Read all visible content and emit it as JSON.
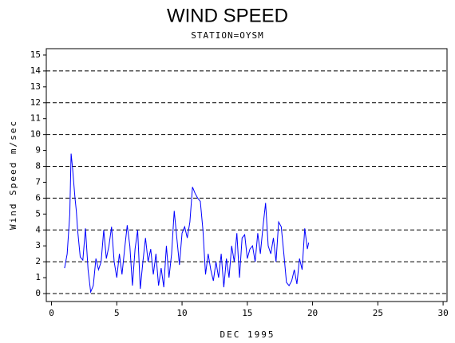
{
  "chart_data": {
    "type": "line",
    "title": "WIND SPEED",
    "subtitle": "STATION=OYSM",
    "x_label": "DEC 1995",
    "y_label": "Wind Speed m/sec",
    "xlim": [
      -0.4,
      30.3
    ],
    "ylim": [
      -0.5,
      15.4
    ],
    "xticks": [
      0,
      5,
      10,
      15,
      20,
      25,
      30
    ],
    "yticks": [
      0,
      1,
      2,
      3,
      4,
      5,
      6,
      7,
      8,
      9,
      10,
      11,
      12,
      13,
      14,
      15
    ],
    "ygrid": [
      0,
      2,
      4,
      6,
      8,
      10,
      12,
      14
    ],
    "grid": true,
    "x": [
      1.0,
      1.2,
      1.4,
      1.5,
      1.6,
      1.8,
      1.9,
      2.0,
      2.2,
      2.4,
      2.6,
      2.8,
      3.0,
      3.2,
      3.4,
      3.6,
      3.8,
      4.0,
      4.2,
      4.4,
      4.6,
      4.8,
      5.0,
      5.2,
      5.4,
      5.6,
      5.8,
      6.0,
      6.2,
      6.4,
      6.6,
      6.8,
      7.0,
      7.2,
      7.4,
      7.6,
      7.8,
      8.0,
      8.2,
      8.4,
      8.6,
      8.8,
      9.0,
      9.2,
      9.4,
      9.6,
      9.8,
      10.0,
      10.2,
      10.4,
      10.6,
      10.8,
      11.0,
      11.2,
      11.4,
      11.6,
      11.8,
      12.0,
      12.2,
      12.4,
      12.6,
      12.8,
      13.0,
      13.2,
      13.4,
      13.6,
      13.8,
      14.0,
      14.2,
      14.4,
      14.6,
      14.8,
      15.0,
      15.2,
      15.4,
      15.6,
      15.8,
      16.0,
      16.2,
      16.4,
      16.6,
      16.8,
      17.0,
      17.2,
      17.4,
      17.6,
      17.8,
      18.0,
      18.2,
      18.4,
      18.6,
      18.8,
      19.0,
      19.2,
      19.4,
      19.6,
      19.7
    ],
    "series": [
      {
        "name": "Wind Speed",
        "color": "#0000ff",
        "values": [
          1.6,
          2.5,
          5.0,
          8.8,
          8.0,
          6.0,
          5.2,
          4.0,
          2.3,
          2.1,
          4.1,
          1.5,
          0.1,
          0.5,
          2.2,
          1.5,
          2.0,
          4.0,
          2.2,
          3.0,
          4.2,
          2.0,
          1.0,
          2.5,
          1.2,
          2.8,
          4.3,
          3.0,
          0.5,
          2.8,
          4.0,
          0.3,
          2.0,
          3.5,
          2.0,
          2.8,
          1.2,
          2.5,
          0.5,
          1.6,
          0.4,
          3.0,
          1.0,
          2.5,
          5.2,
          3.5,
          1.8,
          3.8,
          4.2,
          3.5,
          4.5,
          6.7,
          6.3,
          6.0,
          5.8,
          4.0,
          1.2,
          2.5,
          1.5,
          0.8,
          2.0,
          1.0,
          2.5,
          0.4,
          2.2,
          1.0,
          3.0,
          2.0,
          3.8,
          1.0,
          3.5,
          3.7,
          2.2,
          2.8,
          3.0,
          2.0,
          3.8,
          2.5,
          4.2,
          5.7,
          3.0,
          2.5,
          3.5,
          2.0,
          4.5,
          4.2,
          2.5,
          0.7,
          0.5,
          0.8,
          1.5,
          0.6,
          2.2,
          1.5,
          4.1,
          2.8,
          3.2
        ]
      }
    ]
  }
}
